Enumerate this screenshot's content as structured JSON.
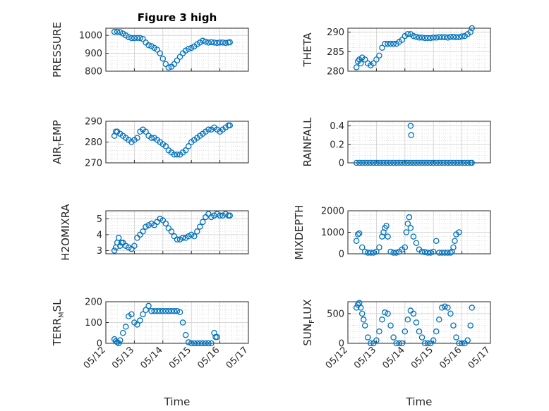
{
  "figure": {
    "title": "Figure 3 high",
    "xlabel": "Time",
    "marker_color": "#0072BD",
    "grid_color": "#cfcfcf",
    "xtick_labels": [
      "05/12",
      "05/13",
      "05/14",
      "05/15",
      "05/16",
      "05/17"
    ]
  },
  "chart_data": [
    {
      "type": "scatter",
      "id": "pressure",
      "title": "Figure 3 high",
      "ylabel": "PRESSURE",
      "ylim": [
        800,
        1040
      ],
      "yticks": [
        800,
        900,
        1000
      ],
      "xlim": [
        0,
        5
      ],
      "xlabel": "",
      "x": [
        0.3,
        0.4,
        0.5,
        0.6,
        0.7,
        0.8,
        0.9,
        1.0,
        1.1,
        1.2,
        1.3,
        1.4,
        1.5,
        1.6,
        1.7,
        1.8,
        1.9,
        2.0,
        2.1,
        2.2,
        2.3,
        2.4,
        2.5,
        2.6,
        2.7,
        2.8,
        2.9,
        3.0,
        3.1,
        3.2,
        3.3,
        3.4,
        3.5,
        3.6,
        3.7,
        3.8,
        3.9,
        4.0,
        4.1,
        4.2,
        4.3,
        4.35
      ],
      "y": [
        1020,
        1020,
        1018,
        1010,
        1000,
        990,
        985,
        985,
        986,
        985,
        980,
        960,
        945,
        940,
        930,
        920,
        900,
        870,
        840,
        820,
        825,
        840,
        860,
        880,
        900,
        915,
        925,
        930,
        938,
        950,
        960,
        970,
        965,
        960,
        962,
        960,
        958,
        960,
        960,
        958,
        960,
        962
      ]
    },
    {
      "type": "scatter",
      "id": "theta",
      "ylabel": "THETA",
      "ylim": [
        280,
        291
      ],
      "yticks": [
        280,
        285,
        290
      ],
      "xlim": [
        0,
        5
      ],
      "xlabel": "",
      "x": [
        0.3,
        0.35,
        0.4,
        0.45,
        0.5,
        0.6,
        0.7,
        0.8,
        0.9,
        1.0,
        1.1,
        1.2,
        1.3,
        1.4,
        1.5,
        1.6,
        1.7,
        1.8,
        1.9,
        2.0,
        2.1,
        2.2,
        2.3,
        2.4,
        2.5,
        2.6,
        2.7,
        2.8,
        2.9,
        3.0,
        3.1,
        3.2,
        3.3,
        3.4,
        3.5,
        3.6,
        3.7,
        3.8,
        3.9,
        4.0,
        4.1,
        4.2,
        4.3,
        4.35
      ],
      "y": [
        281,
        282.5,
        283,
        282,
        283.5,
        283,
        282,
        281.5,
        282,
        283,
        284,
        286,
        287,
        287,
        287,
        287,
        287,
        287.5,
        288,
        289,
        289.5,
        289.5,
        289,
        288.8,
        288.6,
        288.6,
        288.5,
        288.5,
        288.5,
        288.6,
        288.6,
        288.7,
        288.7,
        288.7,
        288.6,
        288.8,
        288.8,
        288.7,
        288.7,
        288.9,
        289,
        289.5,
        290,
        291
      ]
    },
    {
      "type": "scatter",
      "id": "air_temp",
      "ylabel": "AIR",
      "ylabel_sub": "T",
      "ylabel_rest": "EMP",
      "ylim": [
        270,
        290
      ],
      "yticks": [
        270,
        280,
        290
      ],
      "xlim": [
        0,
        5
      ],
      "xlabel": "",
      "x": [
        0.3,
        0.35,
        0.4,
        0.5,
        0.6,
        0.7,
        0.8,
        0.9,
        1.0,
        1.1,
        1.2,
        1.3,
        1.4,
        1.5,
        1.6,
        1.7,
        1.8,
        1.9,
        2.0,
        2.1,
        2.2,
        2.3,
        2.4,
        2.5,
        2.6,
        2.7,
        2.8,
        2.9,
        3.0,
        3.1,
        3.2,
        3.3,
        3.4,
        3.5,
        3.6,
        3.7,
        3.8,
        3.9,
        4.0,
        4.1,
        4.2,
        4.3,
        4.35
      ],
      "y": [
        283,
        285,
        285,
        284,
        283,
        282,
        281,
        280,
        281,
        282,
        285,
        286,
        285,
        283,
        282,
        282,
        281,
        280,
        279,
        278,
        276,
        275,
        274,
        274,
        274,
        275,
        276,
        278,
        280,
        281,
        282,
        283,
        284,
        285,
        286,
        286,
        287,
        286,
        285,
        286,
        287,
        288,
        288
      ]
    },
    {
      "type": "scatter",
      "id": "rainfall",
      "ylabel": "RAINFALL",
      "ylim": [
        0,
        0.45
      ],
      "yticks": [
        0,
        0.2,
        0.4
      ],
      "ytick_labels": [
        "0",
        "0.2",
        "0.4"
      ],
      "xlim": [
        0,
        5
      ],
      "xlabel": "",
      "x": [
        0.3,
        0.4,
        0.5,
        0.6,
        0.7,
        0.8,
        0.9,
        1.0,
        1.1,
        1.2,
        1.3,
        1.4,
        1.5,
        1.6,
        1.7,
        1.8,
        1.9,
        2.0,
        2.1,
        2.2,
        2.3,
        2.4,
        2.5,
        2.6,
        2.7,
        2.8,
        2.9,
        3.0,
        3.1,
        3.2,
        3.3,
        3.4,
        3.5,
        3.6,
        3.7,
        3.8,
        3.9,
        4.0,
        4.1,
        4.2,
        4.3,
        4.35,
        2.2,
        2.22
      ],
      "y": [
        0,
        0,
        0,
        0,
        0,
        0,
        0,
        0,
        0,
        0,
        0,
        0,
        0,
        0,
        0,
        0,
        0,
        0,
        0,
        0,
        0,
        0,
        0,
        0,
        0,
        0,
        0,
        0,
        0,
        0,
        0,
        0,
        0,
        0,
        0,
        0,
        0,
        0,
        0,
        0,
        0,
        0,
        0.4,
        0.3
      ]
    },
    {
      "type": "scatter",
      "id": "h2omixra",
      "ylabel": "H2OMIXRA",
      "ylim": [
        2.8,
        5.5
      ],
      "yticks": [
        3,
        4,
        5
      ],
      "xlim": [
        0,
        5
      ],
      "xlabel": "",
      "x": [
        0.3,
        0.35,
        0.4,
        0.45,
        0.5,
        0.55,
        0.6,
        0.7,
        0.8,
        0.9,
        1.0,
        1.1,
        1.2,
        1.3,
        1.4,
        1.5,
        1.6,
        1.7,
        1.8,
        1.9,
        2.0,
        2.1,
        2.2,
        2.3,
        2.4,
        2.5,
        2.6,
        2.7,
        2.8,
        2.9,
        3.0,
        3.1,
        3.2,
        3.3,
        3.4,
        3.5,
        3.6,
        3.7,
        3.8,
        3.9,
        4.0,
        4.1,
        4.2,
        4.3,
        4.35
      ],
      "y": [
        3.0,
        3.2,
        3.5,
        3.8,
        3.3,
        3.5,
        3.5,
        3.3,
        3.2,
        3.1,
        3.3,
        3.8,
        4.0,
        4.2,
        4.5,
        4.6,
        4.7,
        4.6,
        4.8,
        5.0,
        4.9,
        4.7,
        4.4,
        4.2,
        3.9,
        3.7,
        3.7,
        3.8,
        3.8,
        3.9,
        4.0,
        3.9,
        4.2,
        4.5,
        4.8,
        5.1,
        5.3,
        5.1,
        5.2,
        5.3,
        5.2,
        5.2,
        5.3,
        5.2,
        5.2
      ]
    },
    {
      "type": "scatter",
      "id": "mixdepth",
      "ylabel": "MIXDEPTH",
      "ylim": [
        0,
        2000
      ],
      "yticks": [
        0,
        1000,
        2000
      ],
      "xlim": [
        0,
        5
      ],
      "xlabel": "",
      "x": [
        0.3,
        0.35,
        0.4,
        0.5,
        0.6,
        0.7,
        0.8,
        0.9,
        1.0,
        1.1,
        1.2,
        1.25,
        1.3,
        1.35,
        1.4,
        1.5,
        1.6,
        1.7,
        1.8,
        1.9,
        2.0,
        2.05,
        2.1,
        2.15,
        2.2,
        2.3,
        2.4,
        2.5,
        2.6,
        2.7,
        2.8,
        2.9,
        3.0,
        3.1,
        3.2,
        3.3,
        3.4,
        3.5,
        3.6,
        3.65,
        3.7,
        3.75,
        3.8,
        3.9
      ],
      "y": [
        600,
        900,
        950,
        300,
        100,
        50,
        50,
        50,
        100,
        300,
        800,
        1000,
        1200,
        1300,
        800,
        100,
        50,
        50,
        100,
        200,
        300,
        1000,
        1400,
        1700,
        1200,
        800,
        500,
        200,
        100,
        80,
        50,
        50,
        100,
        600,
        50,
        50,
        50,
        50,
        50,
        100,
        300,
        600,
        900,
        1000
      ]
    },
    {
      "type": "scatter",
      "id": "terr_msl",
      "ylabel": "TERR",
      "ylabel_sub": "M",
      "ylabel_rest": "SL",
      "ylim": [
        0,
        200
      ],
      "yticks": [
        0,
        100,
        200
      ],
      "xlim": [
        0,
        5
      ],
      "xlabel": "Time",
      "x": [
        0.3,
        0.35,
        0.4,
        0.45,
        0.5,
        0.6,
        0.7,
        0.8,
        0.9,
        1.0,
        1.1,
        1.2,
        1.3,
        1.4,
        1.5,
        1.6,
        1.7,
        1.8,
        1.9,
        2.0,
        2.1,
        2.2,
        2.3,
        2.4,
        2.5,
        2.6,
        2.7,
        2.8,
        2.9,
        3.0,
        3.1,
        3.2,
        3.3,
        3.4,
        3.5,
        3.6,
        3.7,
        3.8,
        3.85,
        3.9
      ],
      "y": [
        20,
        10,
        5,
        0,
        15,
        50,
        80,
        130,
        140,
        100,
        90,
        110,
        140,
        160,
        180,
        155,
        155,
        155,
        155,
        155,
        155,
        155,
        155,
        155,
        155,
        150,
        100,
        40,
        5,
        0,
        0,
        0,
        0,
        0,
        0,
        0,
        0,
        50,
        30,
        30
      ]
    },
    {
      "type": "scatter",
      "id": "sun_flux",
      "ylabel": "SUN",
      "ylabel_sub": "F",
      "ylabel_rest": "LUX",
      "ylim": [
        0,
        700
      ],
      "yticks": [
        0,
        500
      ],
      "xlim": [
        0,
        5
      ],
      "xlabel": "Time",
      "x": [
        0.3,
        0.35,
        0.4,
        0.45,
        0.5,
        0.55,
        0.6,
        0.7,
        0.8,
        0.9,
        1.0,
        1.1,
        1.2,
        1.3,
        1.4,
        1.5,
        1.6,
        1.7,
        1.8,
        1.9,
        2.0,
        2.1,
        2.2,
        2.3,
        2.4,
        2.5,
        2.6,
        2.7,
        2.8,
        2.9,
        3.0,
        3.1,
        3.2,
        3.3,
        3.4,
        3.5,
        3.6,
        3.7,
        3.8,
        3.9,
        4.0,
        4.1,
        4.2,
        4.3,
        4.35
      ],
      "y": [
        600,
        650,
        680,
        600,
        500,
        400,
        300,
        100,
        0,
        0,
        50,
        200,
        400,
        520,
        500,
        300,
        100,
        0,
        0,
        0,
        200,
        400,
        550,
        500,
        350,
        200,
        100,
        0,
        0,
        0,
        50,
        200,
        400,
        600,
        620,
        600,
        500,
        300,
        100,
        0,
        0,
        0,
        50,
        300,
        600
      ]
    }
  ]
}
